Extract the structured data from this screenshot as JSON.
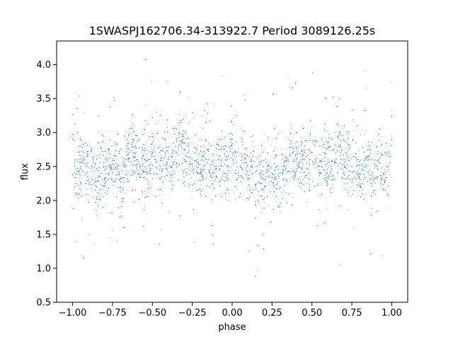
{
  "chart_data": {
    "type": "scatter",
    "title": "1SWASPJ162706.34-313922.7 Period 3089126.25s",
    "xlabel": "phase",
    "ylabel": "flux",
    "xlim": [
      -1.1,
      1.1
    ],
    "ylim": [
      0.5,
      4.35
    ],
    "grid": false,
    "marker_color": "#1f77b4",
    "x_ticks": [
      -1.0,
      -0.75,
      -0.5,
      -0.25,
      0.0,
      0.25,
      0.5,
      0.75,
      1.0
    ],
    "x_tick_labels": [
      "−1.00",
      "−0.75",
      "−0.50",
      "−0.25",
      "0.00",
      "0.25",
      "0.50",
      "0.75",
      "1.00"
    ],
    "y_ticks": [
      0.5,
      1.0,
      1.5,
      2.0,
      2.5,
      3.0,
      3.5,
      4.0
    ],
    "y_tick_labels": [
      "0.5",
      "1.0",
      "1.5",
      "2.0",
      "2.5",
      "3.0",
      "3.5",
      "4.0"
    ],
    "series": [
      {
        "description_points": "phase-folded light curve; data repeated at phase and phase+1",
        "x": [
          -1.0,
          -0.98,
          -0.95,
          -0.92,
          -0.9,
          -0.88,
          -0.85,
          -0.82,
          -0.8,
          -0.78,
          -0.75,
          -0.72,
          -0.7,
          -0.68,
          -0.65,
          -0.62,
          -0.6,
          -0.58,
          -0.55,
          -0.52,
          -0.5,
          -0.48,
          -0.45,
          -0.42,
          -0.4,
          -0.38,
          -0.35,
          -0.32,
          -0.3,
          -0.28,
          -0.25,
          -0.22,
          -0.2,
          -0.18,
          -0.15,
          -0.12,
          -0.1,
          -0.08,
          -0.05,
          -0.02,
          0.0,
          0.02,
          0.05,
          0.08,
          0.1,
          0.12,
          0.15,
          0.18,
          0.2,
          0.22,
          0.25,
          0.28,
          0.3,
          0.32,
          0.35,
          0.38,
          0.4,
          0.42,
          0.45,
          0.48,
          0.5,
          0.52,
          0.55,
          0.58,
          0.6,
          0.62,
          0.65,
          0.68,
          0.7,
          0.72,
          0.75,
          0.78,
          0.8,
          0.82,
          0.85,
          0.88,
          0.9,
          0.92,
          0.95,
          0.98,
          1.0
        ],
        "y": [
          2.9,
          2.4,
          2.5,
          2.6,
          2.3,
          2.5,
          2.2,
          2.4,
          2.3,
          2.5,
          2.4,
          2.5,
          2.2,
          2.5,
          2.6,
          2.7,
          2.6,
          2.5,
          2.6,
          2.4,
          2.7,
          2.6,
          2.5,
          2.7,
          2.6,
          2.5,
          2.7,
          2.8,
          2.6,
          2.7,
          2.5,
          2.6,
          2.4,
          2.5,
          2.6,
          2.4,
          2.5,
          2.6,
          2.4,
          2.5,
          2.9,
          2.4,
          2.5,
          2.6,
          2.3,
          2.5,
          2.2,
          2.4,
          2.3,
          2.5,
          2.4,
          2.5,
          2.2,
          2.5,
          2.6,
          2.7,
          2.6,
          2.5,
          2.6,
          2.4,
          2.7,
          2.6,
          2.5,
          2.7,
          2.6,
          2.5,
          2.7,
          2.8,
          2.6,
          2.7,
          2.5,
          2.6,
          2.4,
          2.5,
          2.6,
          2.4,
          2.5,
          2.6,
          2.4,
          2.5,
          2.9
        ]
      }
    ]
  }
}
